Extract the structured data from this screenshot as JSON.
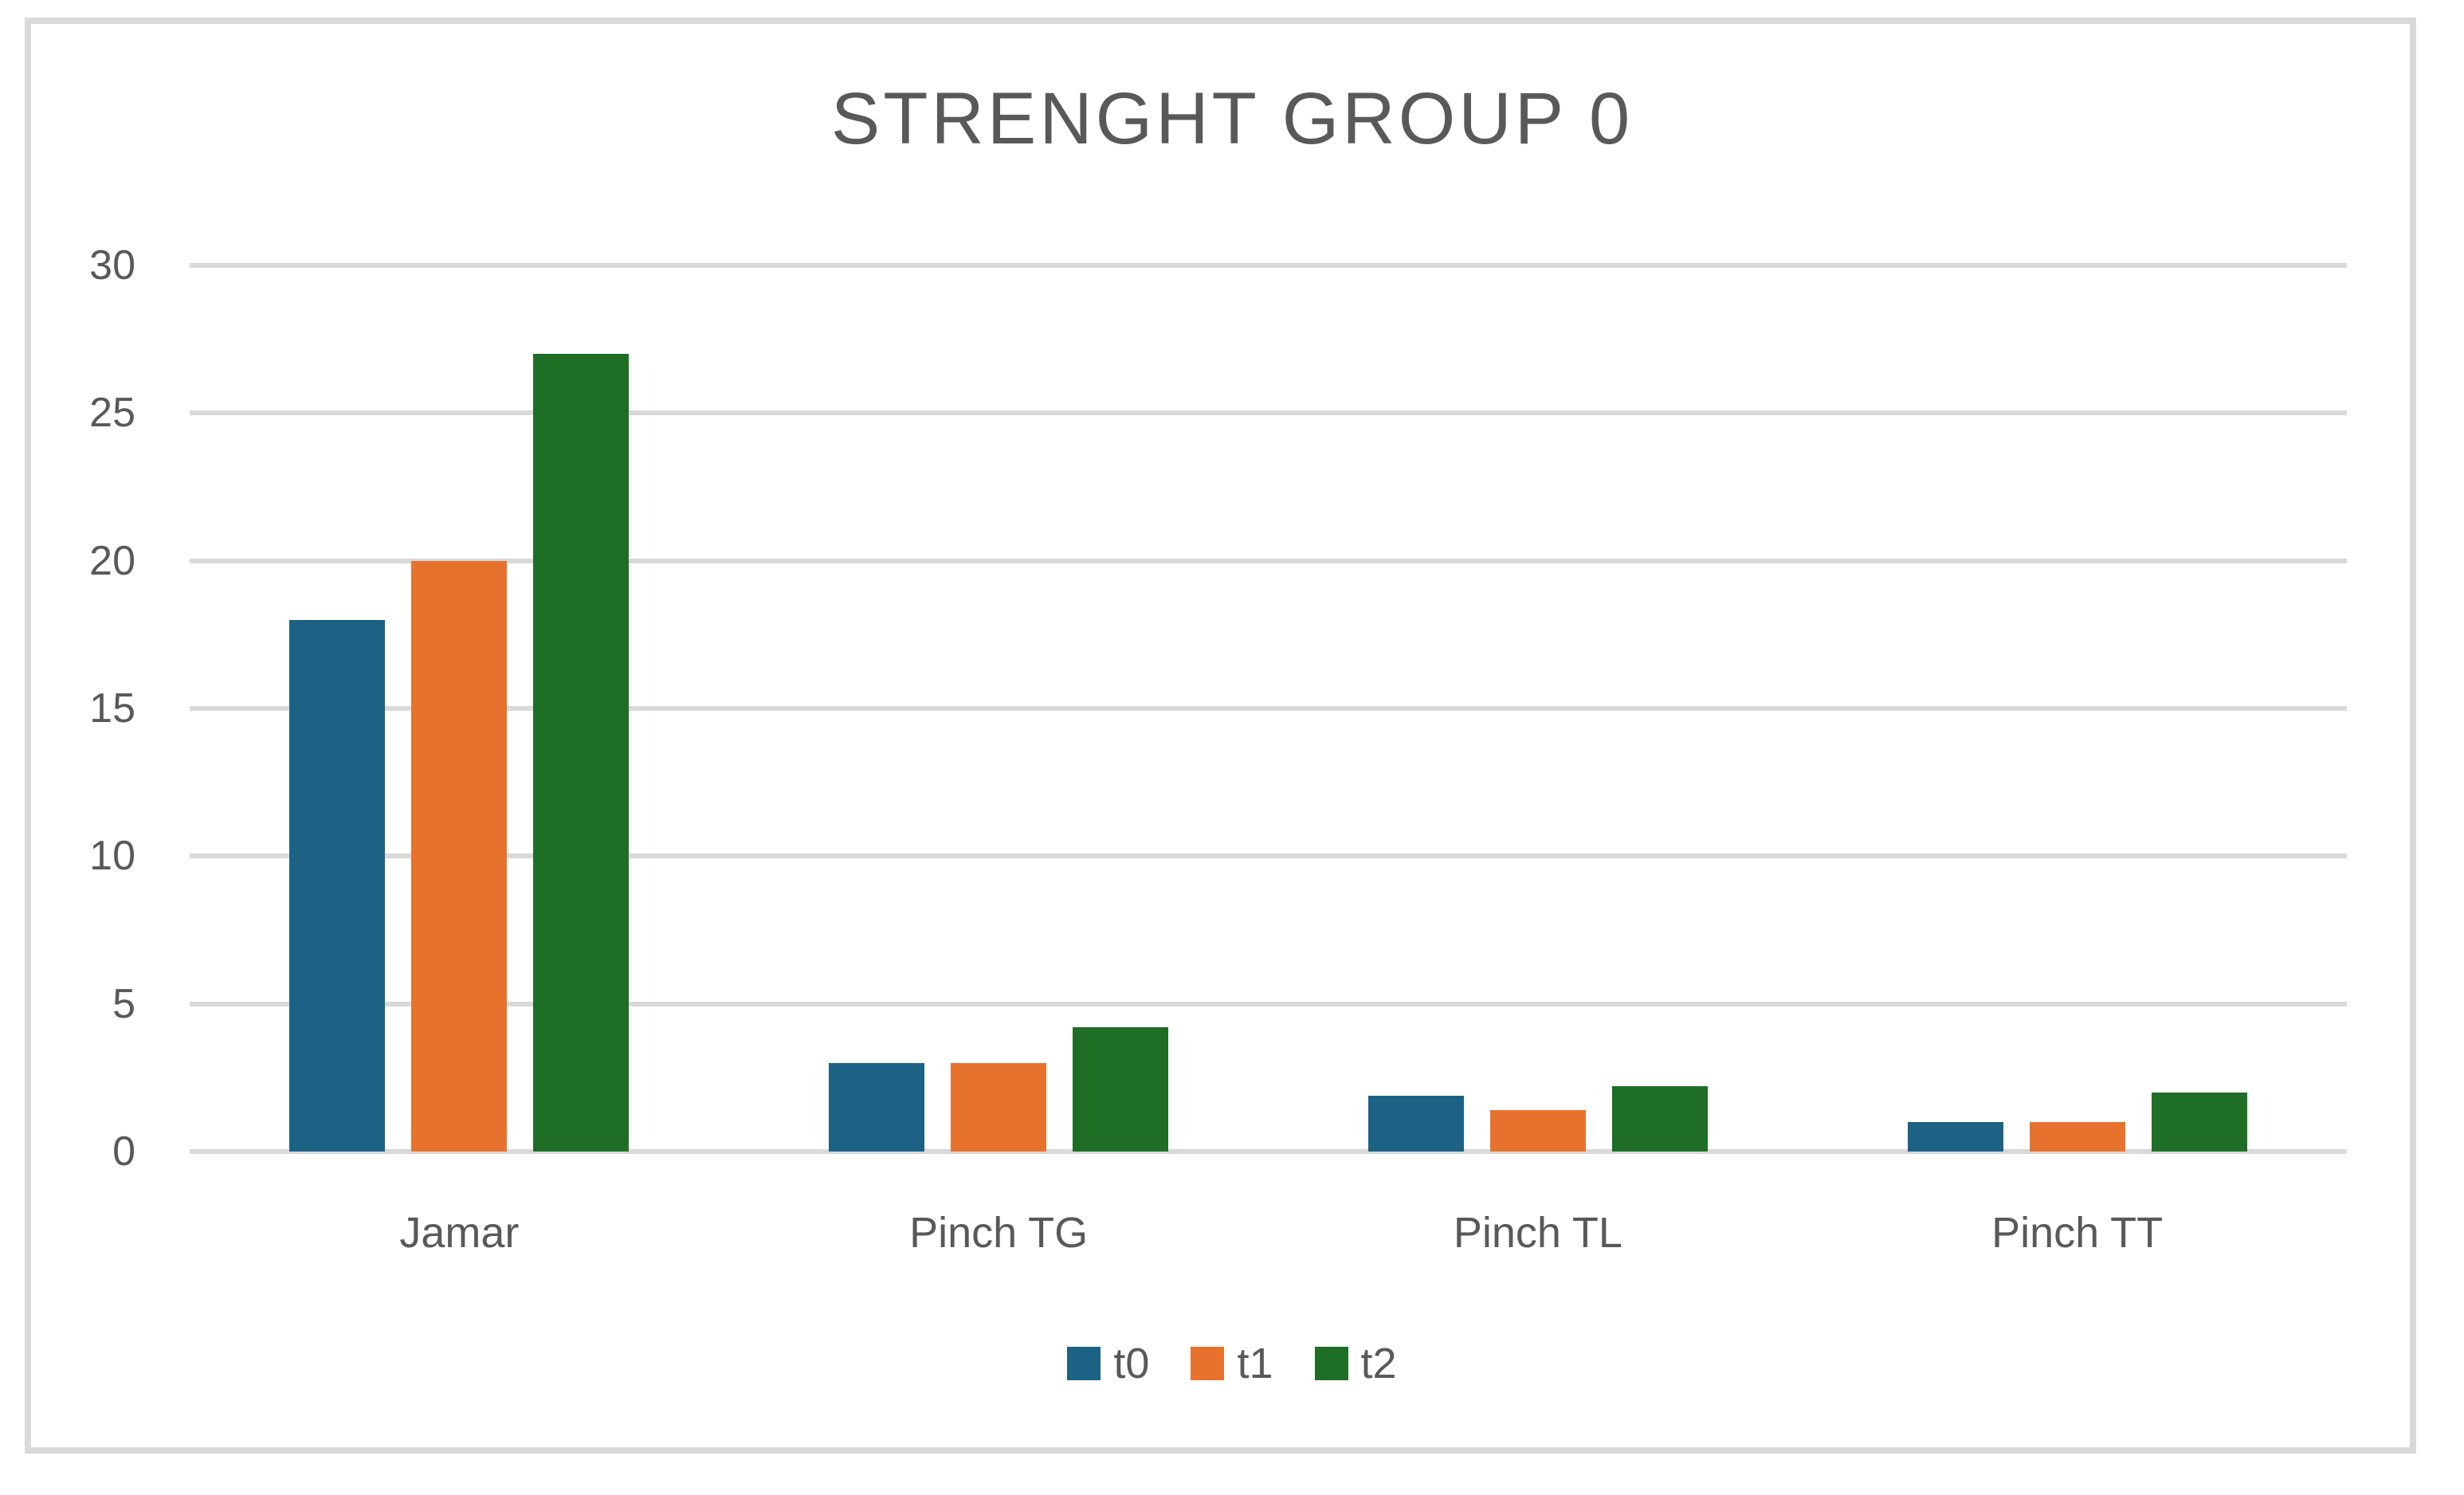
{
  "title": "STRENGHT GROUP 0",
  "chart_data": {
    "type": "bar",
    "title": "STRENGHT GROUP 0",
    "categories": [
      "Jamar",
      "Pinch TG",
      "Pinch TL",
      "Pinch TT"
    ],
    "series": [
      {
        "name": "t0",
        "color": "#1b6284",
        "values": [
          18,
          3,
          1.9,
          1
        ]
      },
      {
        "name": "t1",
        "color": "#e7722e",
        "values": [
          20,
          3,
          1.4,
          1
        ]
      },
      {
        "name": "t2",
        "color": "#1e6e26",
        "values": [
          27,
          4.2,
          2.2,
          2
        ]
      }
    ],
    "xlabel": "",
    "ylabel": "",
    "ylim": [
      0,
      30
    ],
    "yticks": [
      0,
      5,
      10,
      15,
      20,
      25,
      30
    ],
    "grid": true,
    "legend_position": "bottom",
    "legend_labels": [
      "t0",
      "t1",
      "t2"
    ]
  },
  "colors": {
    "title_text": "#595959",
    "axis_text": "#595959",
    "gridline": "#d9d9d9",
    "frame_border": "#d9d9d9",
    "background": "#ffffff"
  }
}
